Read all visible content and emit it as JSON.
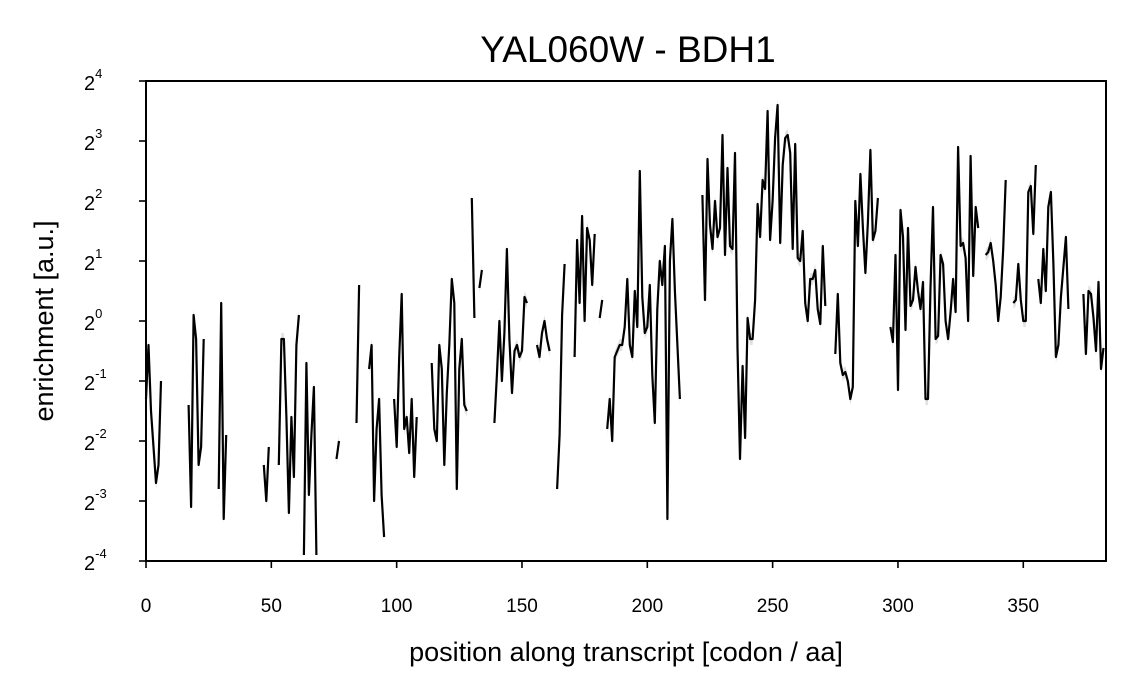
{
  "chart_data": {
    "type": "line",
    "title": "YAL060W - BDH1",
    "xlabel": "position along transcript [codon / aa]",
    "ylabel": "enrichment [a.u.]",
    "xlim": [
      0,
      383
    ],
    "ylim_log2": [
      -4,
      4
    ],
    "yscale": "log2",
    "xticks": [
      0,
      50,
      100,
      150,
      200,
      250,
      300,
      350
    ],
    "yticks": [
      {
        "base": "2",
        "exp": "-4"
      },
      {
        "base": "2",
        "exp": "-3"
      },
      {
        "base": "2",
        "exp": "-2"
      },
      {
        "base": "2",
        "exp": "-1"
      },
      {
        "base": "2",
        "exp": "0"
      },
      {
        "base": "2",
        "exp": "1"
      },
      {
        "base": "2",
        "exp": "2"
      },
      {
        "base": "2",
        "exp": "3"
      },
      {
        "base": "2",
        "exp": "4"
      }
    ],
    "grid": false,
    "colors": {
      "line": "#000000",
      "band": "#c8c8c8"
    },
    "note": "values are log2(enrichment); segments break where data is missing",
    "segments": [
      [
        [
          0,
          -1.3
        ],
        [
          1,
          -0.4
        ],
        [
          2,
          -1.5
        ],
        [
          3,
          -2.1
        ],
        [
          4,
          -2.7
        ],
        [
          5,
          -2.4
        ],
        [
          6,
          -1.0
        ]
      ],
      [
        [
          17,
          -1.4
        ],
        [
          18,
          -3.1
        ],
        [
          19,
          0.1
        ],
        [
          20,
          -0.3
        ],
        [
          21,
          -2.4
        ],
        [
          22,
          -2.1
        ],
        [
          23,
          -0.3
        ]
      ],
      [
        [
          29,
          -2.8
        ],
        [
          30,
          0.3
        ],
        [
          31,
          -3.3
        ],
        [
          32,
          -1.9
        ]
      ],
      [
        [
          47,
          -2.4
        ],
        [
          48,
          -3.0
        ],
        [
          49,
          -2.1
        ]
      ],
      [
        [
          53,
          -2.4
        ],
        [
          54,
          -0.3
        ],
        [
          55,
          -0.3
        ],
        [
          56,
          -1.6
        ],
        [
          57,
          -3.2
        ],
        [
          58,
          -1.6
        ],
        [
          59,
          -2.6
        ],
        [
          60,
          -0.4
        ],
        [
          61,
          0.1
        ]
      ],
      [
        [
          63,
          -3.9
        ],
        [
          64,
          -0.7
        ],
        [
          65,
          -2.9
        ],
        [
          66,
          -1.9
        ],
        [
          67,
          -1.1
        ],
        [
          68,
          -3.9
        ]
      ],
      [
        [
          76,
          -2.3
        ],
        [
          77,
          -2.0
        ]
      ],
      [
        [
          84,
          -1.7
        ],
        [
          85,
          0.6
        ]
      ],
      [
        [
          89,
          -0.8
        ],
        [
          90,
          -0.4
        ],
        [
          91,
          -3.0
        ],
        [
          92,
          -1.8
        ],
        [
          93,
          -1.3
        ],
        [
          94,
          -2.9
        ],
        [
          95,
          -3.6
        ]
      ],
      [
        [
          99,
          -1.3
        ],
        [
          100,
          -2.1
        ],
        [
          101,
          -0.6
        ],
        [
          102,
          0.45
        ],
        [
          103,
          -1.8
        ],
        [
          104,
          -1.6
        ],
        [
          105,
          -2.2
        ],
        [
          106,
          -1.3
        ],
        [
          107,
          -2.6
        ],
        [
          108,
          -1.6
        ]
      ],
      [
        [
          114,
          -0.7
        ],
        [
          115,
          -1.8
        ],
        [
          116,
          -2.0
        ],
        [
          117,
          -0.4
        ],
        [
          118,
          -0.8
        ],
        [
          119,
          -2.4
        ],
        [
          120,
          -1.2
        ],
        [
          121,
          -0.4
        ],
        [
          122,
          0.7
        ],
        [
          123,
          0.3
        ],
        [
          124,
          -2.8
        ],
        [
          125,
          -0.8
        ],
        [
          126,
          -0.3
        ],
        [
          127,
          -1.4
        ],
        [
          128,
          -1.5
        ]
      ],
      [
        [
          130,
          2.05
        ],
        [
          131,
          0.05
        ]
      ],
      [
        [
          133,
          0.55
        ],
        [
          134,
          0.85
        ]
      ],
      [
        [
          139,
          -1.7
        ],
        [
          140,
          -0.9
        ],
        [
          141,
          0.0
        ],
        [
          142,
          -1.0
        ],
        [
          143,
          -0.2
        ],
        [
          144,
          1.2
        ],
        [
          145,
          -0.3
        ],
        [
          146,
          -1.2
        ],
        [
          147,
          -0.5
        ],
        [
          148,
          -0.4
        ],
        [
          149,
          -0.6
        ],
        [
          150,
          -0.5
        ],
        [
          151,
          0.4
        ],
        [
          152,
          0.3
        ]
      ],
      [
        [
          156,
          -0.4
        ],
        [
          157,
          -0.6
        ],
        [
          158,
          -0.2
        ],
        [
          159,
          0.0
        ],
        [
          160,
          -0.3
        ],
        [
          161,
          -0.5
        ]
      ],
      [
        [
          164,
          -2.8
        ],
        [
          165,
          -1.9
        ],
        [
          166,
          0.1
        ],
        [
          167,
          0.95
        ]
      ],
      [
        [
          171,
          -0.6
        ],
        [
          172,
          1.35
        ],
        [
          173,
          0.3
        ],
        [
          174,
          1.75
        ],
        [
          175,
          0.0
        ],
        [
          176,
          1.55
        ],
        [
          177,
          1.35
        ],
        [
          178,
          0.6
        ],
        [
          179,
          1.45
        ]
      ],
      [
        [
          181,
          0.05
        ],
        [
          182,
          0.35
        ]
      ],
      [
        [
          184,
          -1.8
        ],
        [
          185,
          -1.3
        ],
        [
          186,
          -2.0
        ],
        [
          187,
          -0.6
        ],
        [
          188,
          -0.5
        ],
        [
          189,
          -0.4
        ],
        [
          190,
          -0.4
        ],
        [
          191,
          -0.1
        ],
        [
          192,
          0.7
        ],
        [
          193,
          -0.4
        ],
        [
          194,
          -0.6
        ],
        [
          195,
          0.5
        ],
        [
          196,
          -0.1
        ],
        [
          197,
          2.5
        ],
        [
          198,
          0.4
        ],
        [
          199,
          -0.2
        ],
        [
          200,
          -0.1
        ],
        [
          201,
          0.6
        ],
        [
          202,
          -0.9
        ],
        [
          203,
          -1.7
        ],
        [
          204,
          0.2
        ],
        [
          205,
          1.0
        ],
        [
          206,
          0.6
        ],
        [
          207,
          1.25
        ],
        [
          208,
          -3.3
        ],
        [
          209,
          1.0
        ],
        [
          210,
          1.7
        ],
        [
          211,
          0.5
        ],
        [
          212,
          -0.4
        ],
        [
          213,
          -1.3
        ]
      ],
      [
        [
          222,
          2.1
        ],
        [
          223,
          0.35
        ],
        [
          224,
          2.7
        ],
        [
          225,
          1.6
        ],
        [
          226,
          1.2
        ],
        [
          227,
          2.0
        ],
        [
          228,
          1.4
        ],
        [
          229,
          1.55
        ],
        [
          230,
          3.1
        ],
        [
          231,
          1.1
        ],
        [
          232,
          2.55
        ],
        [
          233,
          1.25
        ],
        [
          234,
          1.2
        ],
        [
          235,
          2.8
        ],
        [
          236,
          -0.45
        ],
        [
          237,
          -2.3
        ],
        [
          238,
          -0.75
        ],
        [
          239,
          -1.95
        ],
        [
          240,
          0.05
        ],
        [
          241,
          -0.3
        ],
        [
          242,
          -0.3
        ],
        [
          243,
          0.35
        ],
        [
          244,
          1.95
        ],
        [
          245,
          1.4
        ],
        [
          246,
          2.35
        ],
        [
          247,
          2.2
        ],
        [
          248,
          3.5
        ],
        [
          249,
          1.35
        ],
        [
          250,
          2.0
        ],
        [
          251,
          3.05
        ],
        [
          252,
          3.6
        ],
        [
          253,
          1.3
        ],
        [
          254,
          2.6
        ],
        [
          255,
          3.05
        ],
        [
          256,
          3.1
        ],
        [
          257,
          2.8
        ],
        [
          258,
          1.2
        ],
        [
          259,
          2.95
        ],
        [
          260,
          1.05
        ],
        [
          261,
          1.0
        ],
        [
          262,
          1.5
        ],
        [
          263,
          0.3
        ],
        [
          264,
          0.0
        ],
        [
          265,
          0.7
        ],
        [
          266,
          0.7
        ],
        [
          267,
          0.85
        ],
        [
          268,
          0.2
        ],
        [
          269,
          -0.05
        ],
        [
          270,
          1.25
        ],
        [
          271,
          0.25
        ]
      ],
      [
        [
          275,
          -0.55
        ],
        [
          276,
          0.45
        ],
        [
          277,
          -0.7
        ],
        [
          278,
          -0.9
        ],
        [
          279,
          -0.85
        ],
        [
          280,
          -1.0
        ],
        [
          281,
          -1.3
        ],
        [
          282,
          -1.1
        ],
        [
          283,
          2.0
        ],
        [
          284,
          1.25
        ],
        [
          285,
          2.45
        ],
        [
          286,
          1.55
        ],
        [
          287,
          0.8
        ],
        [
          288,
          1.65
        ],
        [
          289,
          2.85
        ],
        [
          290,
          1.35
        ],
        [
          291,
          1.5
        ],
        [
          292,
          2.05
        ]
      ],
      [
        [
          297,
          -0.1
        ],
        [
          298,
          -0.35
        ],
        [
          299,
          1.1
        ],
        [
          300,
          -1.15
        ],
        [
          301,
          1.85
        ],
        [
          302,
          1.4
        ],
        [
          303,
          -0.15
        ],
        [
          304,
          1.55
        ],
        [
          305,
          0.25
        ],
        [
          306,
          0.35
        ],
        [
          307,
          0.9
        ],
        [
          308,
          0.5
        ],
        [
          309,
          0.2
        ],
        [
          310,
          0.65
        ],
        [
          311,
          -1.3
        ],
        [
          312,
          -1.3
        ],
        [
          313,
          0.55
        ],
        [
          314,
          1.9
        ],
        [
          315,
          -0.3
        ],
        [
          316,
          -0.25
        ],
        [
          317,
          1.1
        ],
        [
          318,
          0.95
        ],
        [
          319,
          0.0
        ],
        [
          320,
          -0.3
        ],
        [
          321,
          0.15
        ],
        [
          322,
          0.7
        ],
        [
          323,
          0.15
        ],
        [
          324,
          2.9
        ],
        [
          325,
          1.25
        ],
        [
          326,
          1.3
        ],
        [
          327,
          1.05
        ],
        [
          328,
          0.0
        ],
        [
          329,
          2.75
        ],
        [
          330,
          0.75
        ],
        [
          331,
          1.9
        ],
        [
          332,
          1.55
        ]
      ],
      [
        [
          335,
          1.1
        ],
        [
          336,
          1.15
        ],
        [
          337,
          1.3
        ],
        [
          338,
          1.0
        ],
        [
          339,
          0.6
        ],
        [
          340,
          0.0
        ],
        [
          341,
          0.4
        ],
        [
          342,
          1.2
        ],
        [
          343,
          2.35
        ]
      ],
      [
        [
          346,
          0.3
        ],
        [
          347,
          0.35
        ],
        [
          348,
          0.95
        ],
        [
          349,
          0.35
        ],
        [
          350,
          0.0
        ],
        [
          351,
          0.0
        ],
        [
          352,
          2.15
        ],
        [
          353,
          2.25
        ],
        [
          354,
          1.45
        ],
        [
          355,
          2.6
        ]
      ],
      [
        [
          356,
          0.7
        ],
        [
          357,
          0.3
        ],
        [
          358,
          1.2
        ],
        [
          359,
          0.5
        ],
        [
          360,
          1.9
        ],
        [
          361,
          2.15
        ],
        [
          362,
          0.95
        ],
        [
          363,
          -0.6
        ],
        [
          364,
          -0.4
        ],
        [
          365,
          0.4
        ],
        [
          366,
          0.9
        ],
        [
          367,
          1.4
        ],
        [
          368,
          0.2
        ]
      ],
      [
        [
          374,
          0.45
        ],
        [
          375,
          -0.55
        ],
        [
          376,
          0.5
        ],
        [
          377,
          0.45
        ],
        [
          378,
          0.05
        ],
        [
          379,
          -0.5
        ],
        [
          380,
          0.65
        ],
        [
          381,
          -0.8
        ],
        [
          382,
          -0.45
        ]
      ]
    ]
  }
}
